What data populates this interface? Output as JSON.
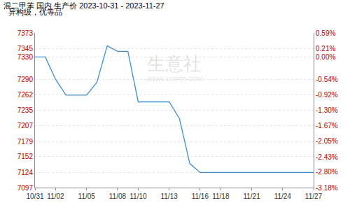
{
  "chart_data": {
    "type": "line",
    "title": "混二甲苯 国内 生产价 2023-10-31 - 2023-11-27",
    "subtitle": "异构级，优等品",
    "annotations": [
      {
        "text": "生意社"
      },
      {
        "text": "WWW.100PPI.COM"
      }
    ],
    "categories": [
      "10/31",
      null,
      "11/02",
      null,
      null,
      "11/05",
      null,
      null,
      "11/08",
      null,
      "11/10",
      null,
      null,
      "11/13",
      null,
      null,
      "11/16",
      null,
      "11/18",
      null,
      null,
      "11/21",
      null,
      null,
      "11/24",
      null,
      null,
      "11/27"
    ],
    "values": [
      7330,
      7330,
      7290,
      7262,
      7262,
      7262,
      7285,
      7350,
      7340,
      7340,
      7250,
      7250,
      7250,
      7250,
      7220,
      7140,
      7124,
      7124,
      7124,
      7124,
      7124,
      7124,
      7124,
      7124,
      7124,
      7124,
      7124,
      7124
    ],
    "color": "#3f8fd2",
    "ylim": [
      7097,
      7373
    ],
    "yticks": [
      7097,
      7124,
      7152,
      7179,
      7207,
      7235,
      7262,
      7290,
      7330,
      7345,
      7373
    ],
    "y2lim": [
      -3.18,
      0.59
    ],
    "y2ticks": [
      {
        "value": -3.18,
        "label": "-3.18%"
      },
      {
        "value": -2.8,
        "label": "-2.80%"
      },
      {
        "value": -2.43,
        "label": "-2.43%"
      },
      {
        "value": -2.05,
        "label": "-2.05%"
      },
      {
        "value": -1.67,
        "label": "-1.67%"
      },
      {
        "value": -1.3,
        "label": "-1.30%"
      },
      {
        "value": -0.92,
        "label": "-0.92%"
      },
      {
        "value": -0.54,
        "label": "-0.54%"
      },
      {
        "value": 0,
        "label": "0.00%"
      },
      {
        "value": 0.21,
        "label": "0.21%"
      },
      {
        "value": 0.59,
        "label": "0.59%"
      }
    ],
    "grid": true
  }
}
